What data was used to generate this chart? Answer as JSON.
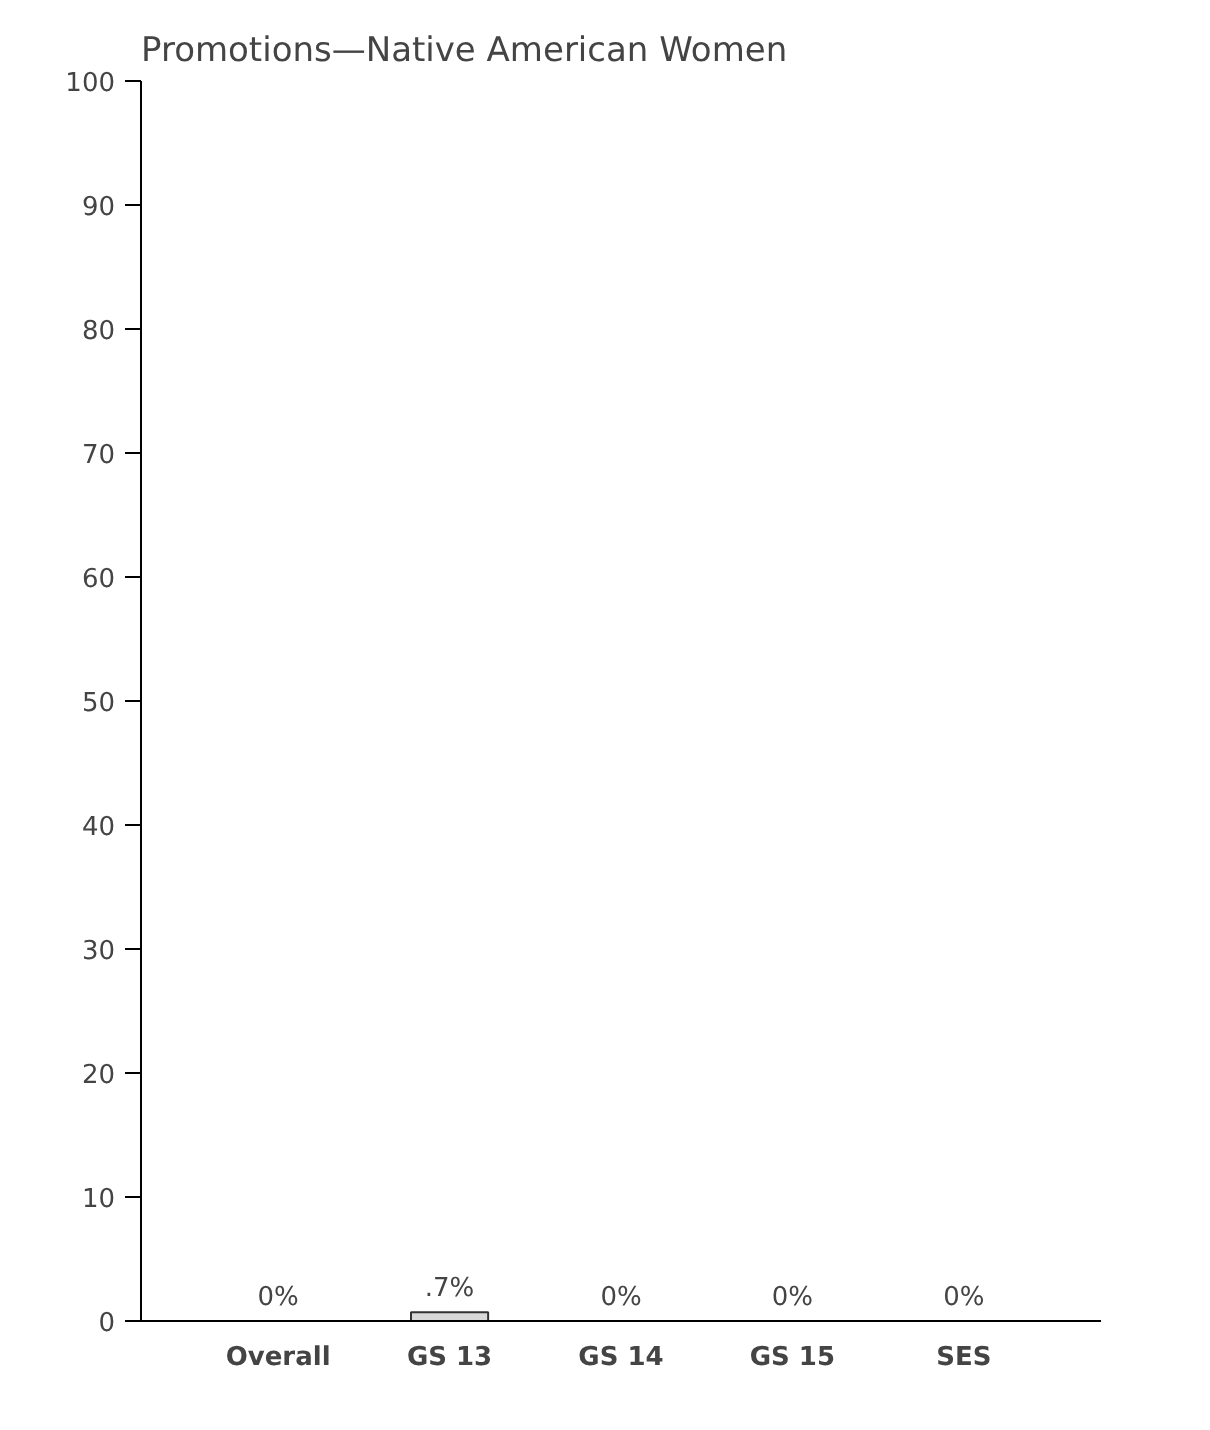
{
  "chart_data": {
    "type": "bar",
    "title": "Promotions—Native American Women",
    "categories": [
      "Overall",
      "GS 13",
      "GS 14",
      "GS 15",
      "SES"
    ],
    "values": [
      0,
      0.7,
      0,
      0,
      0
    ],
    "value_labels": [
      "0%",
      ".7%",
      "0%",
      "0%",
      "0%"
    ],
    "color": "#d9d9d9",
    "ylim": [
      0,
      100
    ],
    "yticks": [
      0,
      10,
      20,
      30,
      40,
      50,
      60,
      70,
      80,
      90,
      100
    ],
    "grid": false
  }
}
